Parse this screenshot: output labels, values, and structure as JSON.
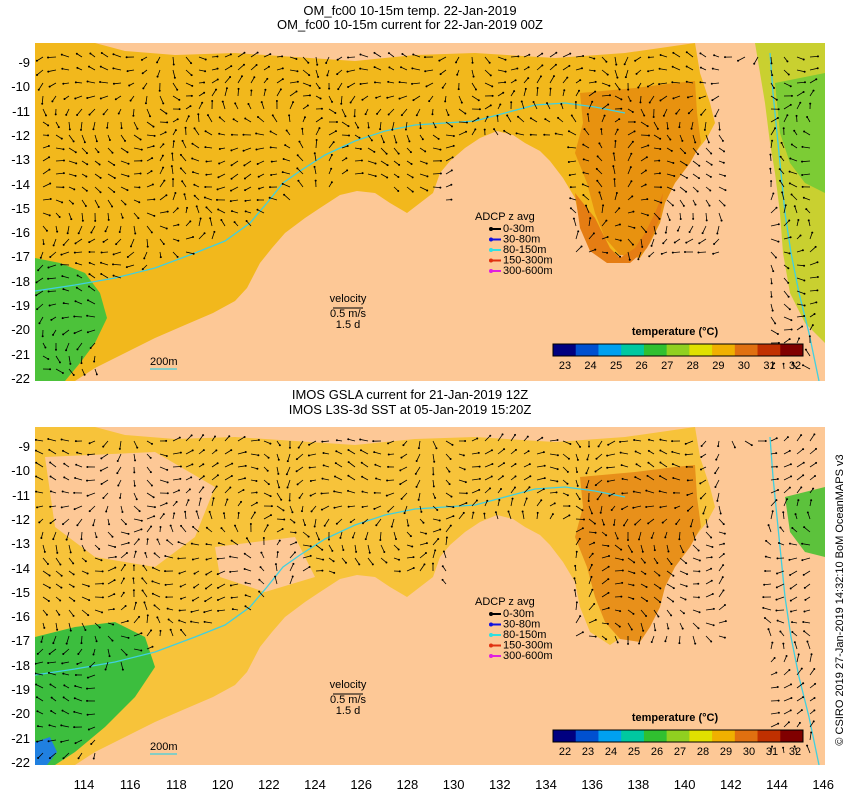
{
  "top_panel": {
    "title_line1": "OM_fc00 10-15m temp. 22-Jan-2019",
    "title_line2": "OM_fc00 10-15m current for 22-Jan-2019 00Z",
    "colorbar_title": "temperature (°C)",
    "colorbar_ticks": [
      "23",
      "24",
      "25",
      "26",
      "27",
      "28",
      "29",
      "30",
      "31",
      "32"
    ],
    "adcp_title": "ADCP z avg",
    "adcp_items": [
      "0-30m",
      "30-80m",
      "80-150m",
      "150-300m",
      "300-600m"
    ],
    "velocity_label": "velocity",
    "velocity_value": "0.5 m/s",
    "velocity_time": "1.5 d",
    "contour_label": "200m"
  },
  "bottom_panel": {
    "title_line1": "IMOS GSLA current for 21-Jan-2019 12Z",
    "title_line2": "IMOS L3S-3d SST at 05-Jan-2019 15:20Z",
    "colorbar_title": "temperature (°C)",
    "colorbar_ticks": [
      "22",
      "23",
      "24",
      "25",
      "26",
      "27",
      "28",
      "29",
      "30",
      "31",
      "32"
    ],
    "adcp_title": "ADCP z avg",
    "adcp_items": [
      "0-30m",
      "30-80m",
      "80-150m",
      "150-300m",
      "300-600m"
    ],
    "velocity_label": "velocity",
    "velocity_value": "0.5 m/s",
    "velocity_time": "1.5 d",
    "contour_label": "200m"
  },
  "y_axis_labels": [
    "-9",
    "-10",
    "-11",
    "-12",
    "-13",
    "-14",
    "-15",
    "-16",
    "-17",
    "-18",
    "-19",
    "-20",
    "-21",
    "-22"
  ],
  "x_axis_labels": [
    "114",
    "116",
    "118",
    "120",
    "122",
    "124",
    "126",
    "128",
    "130",
    "132",
    "134",
    "136",
    "138",
    "140",
    "142",
    "144",
    "146"
  ],
  "copyright": "© CSIRO 2019  27-Jan-2019 14:32:10 BoM OceanMAPS v3",
  "colors": {
    "land": "#fdc896",
    "warm_sea": "#f5b11f",
    "hot_sea": "#e77a12",
    "cool_sea": "#3fbf3a",
    "contour": "#40d0e0",
    "arrows": "#000000"
  },
  "adcp_colors": [
    "#000000",
    "#1010e0",
    "#30e0e0",
    "#e03010",
    "#e020e0"
  ],
  "colorbar_colors": [
    "#000080",
    "#0050d0",
    "#00a0f0",
    "#00c8a0",
    "#30c030",
    "#90d020",
    "#e0e000",
    "#f0b000",
    "#e07010",
    "#c03000",
    "#800000"
  ]
}
